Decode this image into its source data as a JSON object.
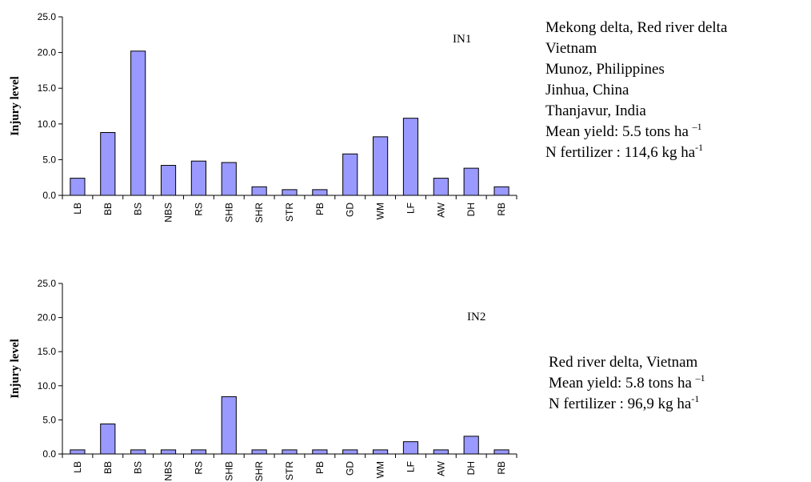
{
  "chart_data": [
    {
      "type": "bar",
      "panel_label": "IN1",
      "ylabel": "Injury level",
      "xlabel": "",
      "ylim": [
        0,
        25
      ],
      "yticks": [
        "0.0",
        "5.0",
        "10.0",
        "15.0",
        "20.0",
        "25.0"
      ],
      "categories": [
        "LB",
        "BB",
        "BS",
        "NBS",
        "RS",
        "SHB",
        "SHR",
        "STR",
        "PB",
        "GD",
        "WM",
        "LF",
        "AW",
        "DH",
        "RB"
      ],
      "values": [
        2.4,
        8.8,
        20.2,
        4.2,
        4.8,
        4.6,
        1.2,
        0.8,
        0.8,
        5.8,
        8.2,
        10.8,
        2.4,
        3.8,
        1.2
      ],
      "bar_color": "#9999ff",
      "grid": false
    },
    {
      "type": "bar",
      "panel_label": "IN2",
      "ylabel": "Injury level",
      "xlabel": "",
      "ylim": [
        0,
        25
      ],
      "yticks": [
        "0.0",
        "5.0",
        "10.0",
        "15.0",
        "20.0",
        "25.0"
      ],
      "categories": [
        "LB",
        "BB",
        "BS",
        "NBS",
        "RS",
        "SHB",
        "SHR",
        "STR",
        "PB",
        "GD",
        "WM",
        "LF",
        "AW",
        "DH",
        "RB"
      ],
      "values": [
        0.6,
        4.4,
        0.6,
        0.6,
        0.6,
        8.4,
        0.6,
        0.6,
        0.6,
        0.6,
        0.6,
        1.8,
        0.6,
        2.6,
        0.6
      ],
      "bar_color": "#9999ff",
      "grid": false
    }
  ],
  "notes": {
    "in1": {
      "line1": "Mekong delta, Red river delta",
      "line2": "Vietnam",
      "line3": "Munoz, Philippines",
      "line4": "Jinhua, China",
      "line5": "Thanjavur, India",
      "yield_text": "Mean yield: 5.5 tons ha",
      "yield_sup": "–1",
      "n_text": "N fertilizer : 114,6 kg ha",
      "n_sup": "-1"
    },
    "in2": {
      "line1": "Red river delta, Vietnam",
      "yield_text": "Mean yield: 5.8 tons ha",
      "yield_sup": "–1",
      "n_text": "N fertilizer : 96,9 kg ha",
      "n_sup": "-1"
    }
  }
}
